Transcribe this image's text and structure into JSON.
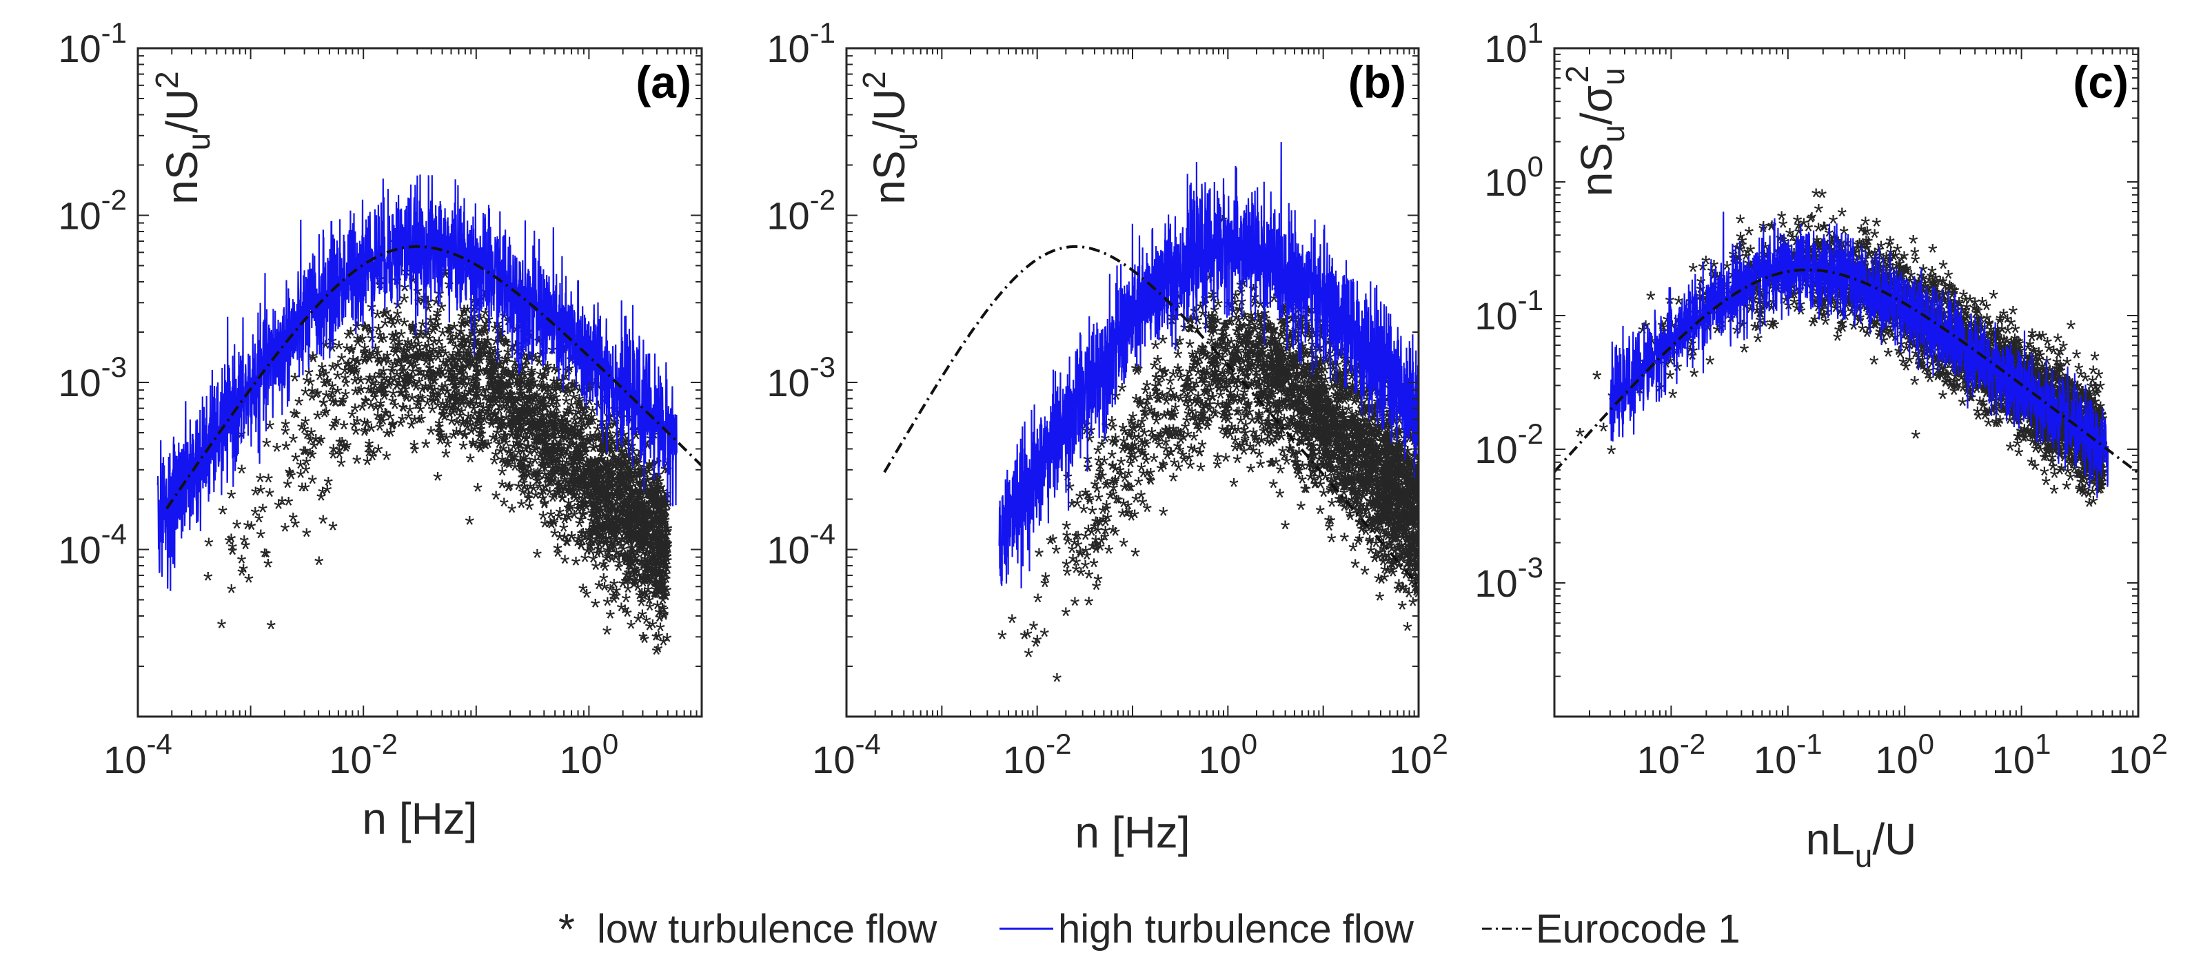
{
  "colors": {
    "low": "#C0102C",
    "high": "#1414F0",
    "eurocode": "#111111",
    "axis": "#262626"
  },
  "legend": {
    "low_label": "low turbulence flow",
    "high_label": "high turbulence flow",
    "eurocode_label": "Eurocode 1"
  },
  "chart_data": [
    {
      "type": "scatter",
      "panel_label": "(a)",
      "xlabel": "n [Hz]",
      "ylabel": "nS_u/U^2",
      "x_log": true,
      "y_log": true,
      "xlim_exp": [
        -4,
        1
      ],
      "ylim_exp": [
        -5,
        -1
      ],
      "xticks": [
        {
          "exp": -4,
          "label": "10",
          "sup": "-4"
        },
        {
          "exp": -2,
          "label": "10",
          "sup": "-2"
        },
        {
          "exp": 0,
          "label": "10",
          "sup": "0"
        }
      ],
      "yticks": [
        {
          "exp": -4,
          "label": "10",
          "sup": "-4"
        },
        {
          "exp": -3,
          "label": "10",
          "sup": "-3"
        },
        {
          "exp": -2,
          "label": "10",
          "sup": "-2"
        },
        {
          "exp": -1,
          "label": "10",
          "sup": "-1"
        }
      ],
      "series": [
        {
          "name": "low turbulence flow",
          "kind": "markers",
          "x_range": [
            0.00018,
            5
          ],
          "peak_x": 0.03,
          "peak_y": 0.0012,
          "spread": 0.45,
          "points": 2600
        },
        {
          "name": "high turbulence flow",
          "kind": "line",
          "x_range": [
            0.00015,
            6
          ],
          "peak_x": 0.03,
          "peak_y": 0.0065,
          "spread": 0.35
        },
        {
          "name": "Eurocode 1",
          "kind": "dashdot",
          "x_range": [
            0.00018,
            10
          ],
          "peak_x": 0.03,
          "peak_y": 0.0065
        }
      ]
    },
    {
      "type": "scatter",
      "panel_label": "(b)",
      "xlabel": "n [Hz]",
      "ylabel": "nS_u/U^2",
      "x_log": true,
      "y_log": true,
      "xlim_exp": [
        -4,
        2
      ],
      "ylim_exp": [
        -5,
        -1
      ],
      "xticks": [
        {
          "exp": -4,
          "label": "10",
          "sup": "-4"
        },
        {
          "exp": -2,
          "label": "10",
          "sup": "-2"
        },
        {
          "exp": 0,
          "label": "10",
          "sup": "0"
        },
        {
          "exp": 2,
          "label": "10",
          "sup": "2"
        }
      ],
      "yticks": [
        {
          "exp": -4,
          "label": "10",
          "sup": "-4"
        },
        {
          "exp": -3,
          "label": "10",
          "sup": "-3"
        },
        {
          "exp": -2,
          "label": "10",
          "sup": "-2"
        },
        {
          "exp": -1,
          "label": "10",
          "sup": "-1"
        }
      ],
      "series": [
        {
          "name": "low turbulence flow",
          "kind": "markers",
          "x_range": [
            0.0025,
            100
          ],
          "peak_x": 1.2,
          "peak_y": 0.0012,
          "spread": 0.45,
          "points": 2600
        },
        {
          "name": "high turbulence flow",
          "kind": "line",
          "x_range": [
            0.004,
            100
          ],
          "peak_x": 1.0,
          "peak_y": 0.0065,
          "spread": 0.35
        },
        {
          "name": "Eurocode 1",
          "kind": "dashdot",
          "x_range": [
            0.00025,
            100
          ],
          "peak_x": 0.025,
          "peak_y": 0.0065
        }
      ]
    },
    {
      "type": "scatter",
      "panel_label": "(c)",
      "xlabel": "nL_u/U",
      "ylabel": "nS_u/σ_u^2",
      "x_log": true,
      "y_log": true,
      "xlim_exp": [
        -3,
        2
      ],
      "ylim_exp": [
        -4,
        1
      ],
      "xticks": [
        {
          "exp": -2,
          "label": "10",
          "sup": "-2"
        },
        {
          "exp": -1,
          "label": "10",
          "sup": "-1"
        },
        {
          "exp": 0,
          "label": "10",
          "sup": "0"
        },
        {
          "exp": 1,
          "label": "10",
          "sup": "1"
        },
        {
          "exp": 2,
          "label": "10",
          "sup": "2"
        }
      ],
      "yticks": [
        {
          "exp": -3,
          "label": "10",
          "sup": "-3"
        },
        {
          "exp": -2,
          "label": "10",
          "sup": "-2"
        },
        {
          "exp": -1,
          "label": "10",
          "sup": "-1"
        },
        {
          "exp": 0,
          "label": "10",
          "sup": "0"
        },
        {
          "exp": 1,
          "label": "10",
          "sup": "1"
        }
      ],
      "series": [
        {
          "name": "low turbulence flow",
          "kind": "markers",
          "x_range": [
            0.0012,
            50
          ],
          "peak_x": 0.13,
          "peak_y": 0.22,
          "spread": 0.35,
          "points": 2600
        },
        {
          "name": "high turbulence flow",
          "kind": "line",
          "x_range": [
            0.003,
            55
          ],
          "peak_x": 0.13,
          "peak_y": 0.22,
          "spread": 0.3
        },
        {
          "name": "Eurocode 1",
          "kind": "dashdot",
          "x_range": [
            0.001,
            100
          ],
          "peak_x": 0.146,
          "peak_y": 0.22
        }
      ]
    }
  ]
}
